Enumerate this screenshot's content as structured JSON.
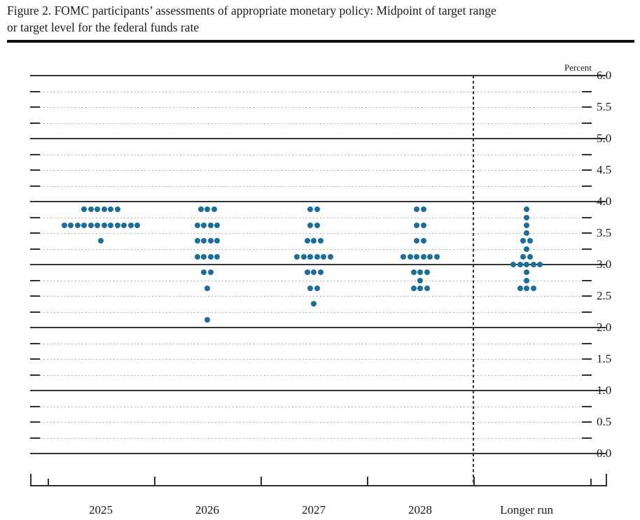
{
  "title": {
    "line1": "Figure 2. FOMC participants’ assessments of appropriate monetary policy: Midpoint of target range",
    "line2": "or target level for the federal funds rate"
  },
  "chart_data": {
    "type": "scatter",
    "title": "FOMC participants’ assessments of appropriate monetary policy: Midpoint of target range or target level for the federal funds rate",
    "unit_label": "Percent",
    "ylabel": "Percent",
    "xlabel": "",
    "ylim": [
      0.0,
      6.0
    ],
    "y_major_step": 1.0,
    "y_minor_step": 0.25,
    "grid": "on",
    "legend": "none",
    "dot_color": "#1b6e99",
    "y_axis_labels": [
      {
        "value": 6.0,
        "label": "6.0"
      },
      {
        "value": 5.5,
        "label": "5.5"
      },
      {
        "value": 5.0,
        "label": "5.0"
      },
      {
        "value": 4.5,
        "label": "4.5"
      },
      {
        "value": 4.0,
        "label": "4.0"
      },
      {
        "value": 3.5,
        "label": "3.5"
      },
      {
        "value": 3.0,
        "label": "3.0"
      },
      {
        "value": 2.5,
        "label": "2.5"
      },
      {
        "value": 2.0,
        "label": "2.0"
      },
      {
        "value": 1.5,
        "label": "1.5"
      },
      {
        "value": 1.0,
        "label": "1.0"
      },
      {
        "value": 0.5,
        "label": "0.5"
      },
      {
        "value": 0.0,
        "label": "0.0"
      }
    ],
    "categories": [
      "2025",
      "2026",
      "2027",
      "2028",
      "Longer run"
    ],
    "separator_after_category": "2028",
    "series": [
      {
        "name": "2025",
        "dots": [
          {
            "value": 3.875,
            "count": 6
          },
          {
            "value": 3.625,
            "count": 12
          },
          {
            "value": 3.375,
            "count": 1
          }
        ]
      },
      {
        "name": "2026",
        "dots": [
          {
            "value": 3.875,
            "count": 3
          },
          {
            "value": 3.625,
            "count": 4
          },
          {
            "value": 3.375,
            "count": 4
          },
          {
            "value": 3.125,
            "count": 4
          },
          {
            "value": 2.875,
            "count": 2
          },
          {
            "value": 2.625,
            "count": 1
          },
          {
            "value": 2.125,
            "count": 1
          }
        ]
      },
      {
        "name": "2027",
        "dots": [
          {
            "value": 3.875,
            "count": 2
          },
          {
            "value": 3.625,
            "count": 2
          },
          {
            "value": 3.375,
            "count": 3
          },
          {
            "value": 3.125,
            "count": 6
          },
          {
            "value": 2.875,
            "count": 3
          },
          {
            "value": 2.625,
            "count": 2
          },
          {
            "value": 2.375,
            "count": 1
          }
        ]
      },
      {
        "name": "2028",
        "dots": [
          {
            "value": 3.875,
            "count": 2
          },
          {
            "value": 3.625,
            "count": 2
          },
          {
            "value": 3.375,
            "count": 2
          },
          {
            "value": 3.125,
            "count": 6
          },
          {
            "value": 2.875,
            "count": 3
          },
          {
            "value": 2.75,
            "count": 1
          },
          {
            "value": 2.625,
            "count": 3
          }
        ]
      },
      {
        "name": "Longer run",
        "dots": [
          {
            "value": 3.875,
            "count": 1
          },
          {
            "value": 3.75,
            "count": 1
          },
          {
            "value": 3.625,
            "count": 1
          },
          {
            "value": 3.5,
            "count": 1
          },
          {
            "value": 3.375,
            "count": 2
          },
          {
            "value": 3.25,
            "count": 1
          },
          {
            "value": 3.125,
            "count": 2
          },
          {
            "value": 3.0,
            "count": 5
          },
          {
            "value": 2.875,
            "count": 1
          },
          {
            "value": 2.75,
            "count": 1
          },
          {
            "value": 2.625,
            "count": 3
          }
        ]
      }
    ]
  }
}
